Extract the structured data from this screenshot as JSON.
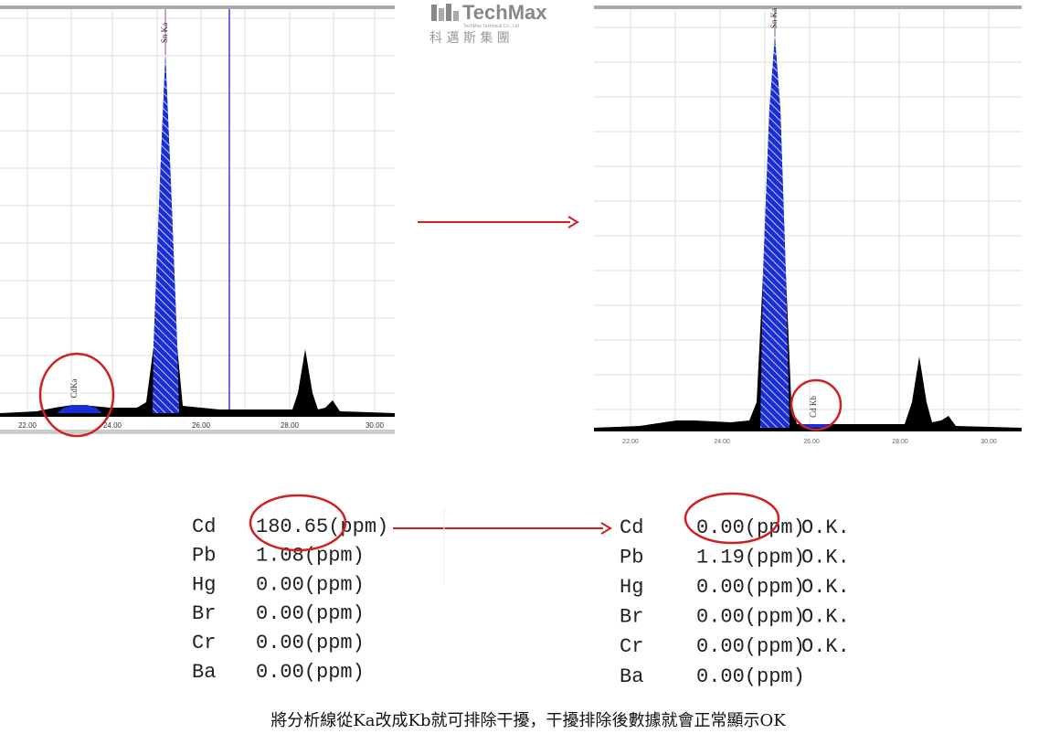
{
  "logo": {
    "name": "TechMax",
    "subtitle": "TechMax Technical Co., Ltd",
    "chinese": "科 邁 斯 集 團"
  },
  "left_spectrum": {
    "peak_labels": [
      "Sn Ka",
      "CdKa"
    ],
    "xticks": [
      "22.00",
      "24.00",
      "26.00",
      "28.00",
      "30.00"
    ]
  },
  "right_spectrum": {
    "peak_labels": [
      "Sn Ka",
      "Cd Kb"
    ],
    "xticks": [
      "22.00",
      "24.00",
      "26.00",
      "28.00",
      "30.00"
    ]
  },
  "left_table": {
    "rows": [
      [
        "Cd",
        "180.65(ppm)"
      ],
      [
        "Pb",
        "1.08(ppm)"
      ],
      [
        "Hg",
        "0.00(ppm)"
      ],
      [
        "Br",
        "0.00(ppm)"
      ],
      [
        "Cr",
        "0.00(ppm)"
      ],
      [
        "Ba",
        "0.00(ppm)"
      ]
    ]
  },
  "right_table": {
    "rows": [
      [
        "Cd",
        "0.00(ppm)",
        "O.K."
      ],
      [
        "Pb",
        "1.19(ppm)",
        "O.K."
      ],
      [
        "Hg",
        "0.00(ppm)",
        "O.K."
      ],
      [
        "Br",
        "0.00(ppm)",
        "O.K."
      ],
      [
        "Cr",
        "0.00(ppm)",
        "O.K."
      ],
      [
        "Ba",
        "0.00(ppm)"
      ]
    ]
  },
  "caption": "將分析線從Ka改成Kb就可排除干擾，干擾排除後數據就會正常顯示OK"
}
